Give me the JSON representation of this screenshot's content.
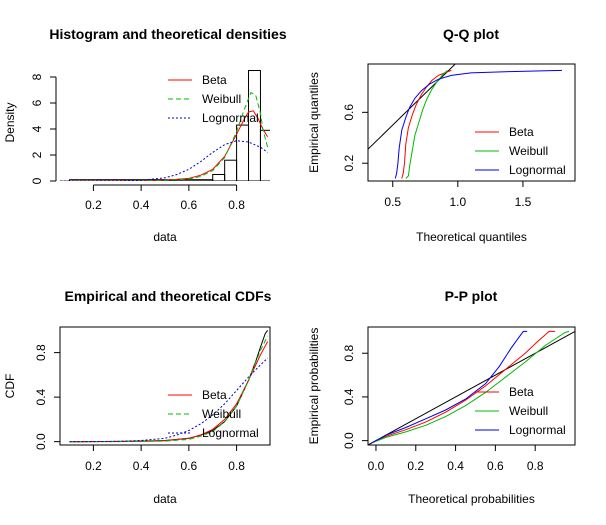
{
  "chart_data": [
    {
      "type": "histogram",
      "title": "Histogram and theoretical densities",
      "xlabel": "data",
      "ylabel": "Density",
      "xlim": [
        0.06,
        0.94
      ],
      "ylim": [
        0,
        9
      ],
      "xticks": [
        "0.2",
        "0.4",
        "0.6",
        "0.8"
      ],
      "yticks": [
        "0",
        "2",
        "4",
        "6",
        "8"
      ],
      "bins": [
        {
          "x0": 0.1,
          "x1": 0.7,
          "density": 0.1
        },
        {
          "x0": 0.7,
          "x1": 0.75,
          "density": 0.5
        },
        {
          "x0": 0.75,
          "x1": 0.8,
          "density": 1.6
        },
        {
          "x0": 0.8,
          "x1": 0.85,
          "density": 4.3
        },
        {
          "x0": 0.85,
          "x1": 0.9,
          "density": 8.5
        },
        {
          "x0": 0.9,
          "x1": 0.95,
          "density": 3.9
        }
      ],
      "series": [
        {
          "name": "Beta",
          "color": "#ff0000",
          "dash": "solid",
          "x": [
            0.06,
            0.4,
            0.5,
            0.6,
            0.65,
            0.7,
            0.75,
            0.8,
            0.83,
            0.85,
            0.87,
            0.89,
            0.91,
            0.93
          ],
          "y": [
            0.0,
            0.02,
            0.06,
            0.2,
            0.45,
            0.9,
            1.9,
            3.6,
            4.7,
            5.3,
            5.4,
            4.8,
            4.0,
            3.4
          ]
        },
        {
          "name": "Weibull",
          "color": "#00bb00",
          "dash": "dashed",
          "x": [
            0.06,
            0.4,
            0.5,
            0.6,
            0.65,
            0.7,
            0.75,
            0.8,
            0.83,
            0.86,
            0.88,
            0.9,
            0.91,
            0.93
          ],
          "y": [
            0.0,
            0.01,
            0.04,
            0.15,
            0.35,
            0.8,
            1.8,
            3.8,
            5.4,
            6.8,
            6.6,
            5.2,
            4.0,
            2.6
          ]
        },
        {
          "name": "Lognormal",
          "color": "#0000cc",
          "dash": "dotted",
          "x": [
            0.06,
            0.3,
            0.4,
            0.5,
            0.55,
            0.6,
            0.65,
            0.7,
            0.75,
            0.8,
            0.85,
            0.9,
            0.93
          ],
          "y": [
            0.0,
            0.01,
            0.05,
            0.25,
            0.5,
            0.9,
            1.5,
            2.2,
            2.8,
            3.1,
            3.0,
            2.6,
            2.2
          ]
        }
      ],
      "legend": [
        "Beta",
        "Weibull",
        "Lognormal"
      ],
      "legend_position": "top-right"
    },
    {
      "type": "line",
      "title": "Q-Q plot",
      "xlabel": "Theoretical quantiles",
      "ylabel": "Empirical quantiles",
      "xlim": [
        0.31,
        1.9
      ],
      "ylim": [
        0.06,
        0.98
      ],
      "xticks": [
        "0.5",
        "1.0",
        "1.5"
      ],
      "xtick_values": [
        0.5,
        1.0,
        1.5
      ],
      "yticks": [
        "0.2",
        "0.6"
      ],
      "ytick_values": [
        0.2,
        0.6
      ],
      "reference_line": {
        "x": [
          0.31,
          1.0
        ],
        "y": [
          0.31,
          1.0
        ]
      },
      "series": [
        {
          "name": "Beta",
          "color": "#ff0000",
          "x": [
            0.57,
            0.58,
            0.59,
            0.6,
            0.62,
            0.65,
            0.68,
            0.72,
            0.76,
            0.8,
            0.85,
            0.9,
            0.95
          ],
          "y": [
            0.08,
            0.12,
            0.2,
            0.35,
            0.48,
            0.58,
            0.66,
            0.74,
            0.8,
            0.85,
            0.89,
            0.91,
            0.93
          ]
        },
        {
          "name": "Weibull",
          "color": "#00bb00",
          "x": [
            0.6,
            0.62,
            0.63,
            0.65,
            0.67,
            0.7,
            0.73,
            0.76,
            0.8,
            0.84,
            0.88,
            0.92
          ],
          "y": [
            0.08,
            0.1,
            0.18,
            0.3,
            0.42,
            0.52,
            0.62,
            0.7,
            0.78,
            0.84,
            0.89,
            0.93
          ]
        },
        {
          "name": "Lognormal",
          "color": "#0000ee",
          "x": [
            0.52,
            0.53,
            0.54,
            0.55,
            0.57,
            0.6,
            0.63,
            0.67,
            0.72,
            0.78,
            0.85,
            0.95,
            1.1,
            1.4,
            1.8
          ],
          "y": [
            0.08,
            0.12,
            0.2,
            0.32,
            0.46,
            0.56,
            0.64,
            0.71,
            0.77,
            0.82,
            0.86,
            0.89,
            0.91,
            0.92,
            0.93
          ]
        }
      ],
      "legend": [
        "Beta",
        "Weibull",
        "Lognormal"
      ],
      "legend_position": "bottom-right"
    },
    {
      "type": "line",
      "title": "Empirical and theoretical CDFs",
      "xlabel": "data",
      "ylabel": "CDF",
      "xlim": [
        0.06,
        0.94
      ],
      "ylim": [
        -0.03,
        1.03
      ],
      "xticks": [
        "0.2",
        "0.4",
        "0.6",
        "0.8"
      ],
      "xtick_values": [
        0.2,
        0.4,
        0.6,
        0.8
      ],
      "yticks": [
        "0.0",
        "0.4",
        "0.8"
      ],
      "ytick_values": [
        0.0,
        0.4,
        0.8
      ],
      "empirical": {
        "x": [
          0.1,
          0.3,
          0.4,
          0.5,
          0.55,
          0.6,
          0.65,
          0.7,
          0.75,
          0.8,
          0.85,
          0.88,
          0.9,
          0.92,
          0.93
        ],
        "y": [
          0.0,
          0.002,
          0.005,
          0.01,
          0.02,
          0.03,
          0.06,
          0.1,
          0.18,
          0.32,
          0.55,
          0.72,
          0.85,
          0.97,
          1.0
        ]
      },
      "series": [
        {
          "name": "Beta",
          "color": "#ff0000",
          "dash": "solid",
          "x": [
            0.1,
            0.4,
            0.5,
            0.6,
            0.65,
            0.7,
            0.75,
            0.8,
            0.85,
            0.9,
            0.93
          ],
          "y": [
            0.0,
            0.002,
            0.008,
            0.03,
            0.06,
            0.11,
            0.2,
            0.34,
            0.55,
            0.78,
            0.9
          ]
        },
        {
          "name": "Weibull",
          "color": "#00bb00",
          "dash": "dashed",
          "x": [
            0.1,
            0.4,
            0.5,
            0.6,
            0.65,
            0.7,
            0.75,
            0.8,
            0.85,
            0.9,
            0.93
          ],
          "y": [
            0.0,
            0.001,
            0.005,
            0.02,
            0.05,
            0.09,
            0.18,
            0.32,
            0.55,
            0.82,
            0.95
          ]
        },
        {
          "name": "Lognormal",
          "color": "#0000cc",
          "dash": "dotted",
          "x": [
            0.1,
            0.3,
            0.4,
            0.5,
            0.55,
            0.6,
            0.65,
            0.7,
            0.75,
            0.8,
            0.85,
            0.9,
            0.93
          ],
          "y": [
            0.0,
            0.002,
            0.01,
            0.03,
            0.06,
            0.1,
            0.16,
            0.24,
            0.34,
            0.46,
            0.58,
            0.69,
            0.75
          ]
        }
      ],
      "legend": [
        "Beta",
        "Weibull",
        "Lognormal"
      ],
      "legend_position": "bottom-right"
    },
    {
      "type": "line",
      "title": "P-P plot",
      "xlabel": "Theoretical probabilities",
      "ylabel": "Empirical probabilities",
      "xlim": [
        -0.04,
        1.0
      ],
      "ylim": [
        -0.04,
        1.04
      ],
      "xticks": [
        "0.0",
        "0.2",
        "0.4",
        "0.6",
        "0.8"
      ],
      "xtick_values": [
        0.0,
        0.2,
        0.4,
        0.6,
        0.8
      ],
      "yticks": [
        "0.0",
        "0.4",
        "0.8"
      ],
      "ytick_values": [
        0.0,
        0.4,
        0.8
      ],
      "reference_line": {
        "x": [
          -0.04,
          1.0
        ],
        "y": [
          -0.04,
          1.0
        ]
      },
      "series": [
        {
          "name": "Beta",
          "color": "#ff0000",
          "x": [
            -0.02,
            0.05,
            0.15,
            0.25,
            0.35,
            0.45,
            0.55,
            0.65,
            0.75,
            0.82,
            0.87,
            0.9
          ],
          "y": [
            -0.02,
            0.04,
            0.1,
            0.17,
            0.26,
            0.37,
            0.5,
            0.65,
            0.8,
            0.92,
            1.0,
            1.0
          ]
        },
        {
          "name": "Weibull",
          "color": "#00bb00",
          "x": [
            -0.02,
            0.05,
            0.15,
            0.25,
            0.35,
            0.45,
            0.55,
            0.65,
            0.75,
            0.85,
            0.95,
            0.97
          ],
          "y": [
            -0.02,
            0.03,
            0.08,
            0.14,
            0.22,
            0.32,
            0.44,
            0.58,
            0.72,
            0.87,
            0.99,
            1.0
          ]
        },
        {
          "name": "Lognormal",
          "color": "#0000ee",
          "x": [
            -0.02,
            0.05,
            0.15,
            0.25,
            0.35,
            0.45,
            0.55,
            0.62,
            0.68,
            0.72,
            0.74,
            0.76
          ],
          "y": [
            -0.02,
            0.05,
            0.12,
            0.2,
            0.28,
            0.38,
            0.52,
            0.68,
            0.85,
            0.95,
            1.0,
            1.0
          ]
        }
      ],
      "legend": [
        "Beta",
        "Weibull",
        "Lognormal"
      ],
      "legend_position": "bottom-right"
    }
  ]
}
